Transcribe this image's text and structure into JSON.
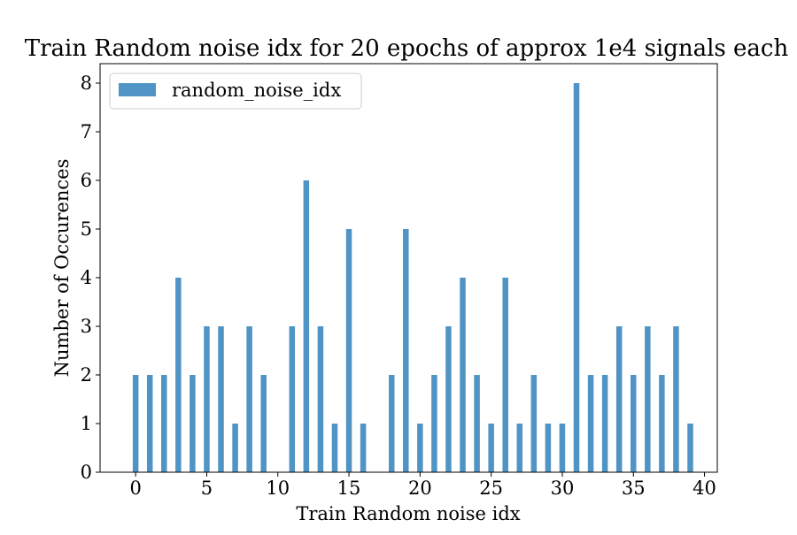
{
  "chart_data": {
    "type": "bar",
    "title": "Train Random noise idx for 20 epochs of approx 1e4 signals each",
    "xlabel": "Train Random noise idx",
    "ylabel": "Number of Occurences",
    "xlim": [
      -2.5,
      40.9
    ],
    "ylim": [
      0,
      8.4
    ],
    "xticks": [
      "0",
      "5",
      "10",
      "15",
      "20",
      "25",
      "30",
      "35",
      "40"
    ],
    "yticks": [
      "0",
      "1",
      "2",
      "3",
      "4",
      "5",
      "6",
      "7",
      "8"
    ],
    "grid": false,
    "legend_position": "top-left",
    "bar_color": "#4f94c4",
    "series": [
      {
        "name": "random_noise_idx",
        "x": [
          0,
          1,
          2,
          3,
          4,
          5,
          6,
          7,
          8,
          9,
          10,
          11,
          12,
          13,
          14,
          15,
          16,
          17,
          18,
          19,
          20,
          21,
          22,
          23,
          24,
          25,
          26,
          27,
          28,
          29,
          30,
          31,
          32,
          33,
          34,
          35,
          36,
          37,
          38,
          39
        ],
        "values": [
          2,
          2,
          2,
          4,
          2,
          3,
          3,
          1,
          3,
          2,
          0,
          3,
          6,
          3,
          1,
          5,
          1,
          0,
          2,
          5,
          1,
          2,
          3,
          4,
          2,
          1,
          4,
          1,
          2,
          1,
          1,
          8,
          2,
          2,
          3,
          2,
          3,
          2,
          3,
          1
        ]
      }
    ]
  }
}
